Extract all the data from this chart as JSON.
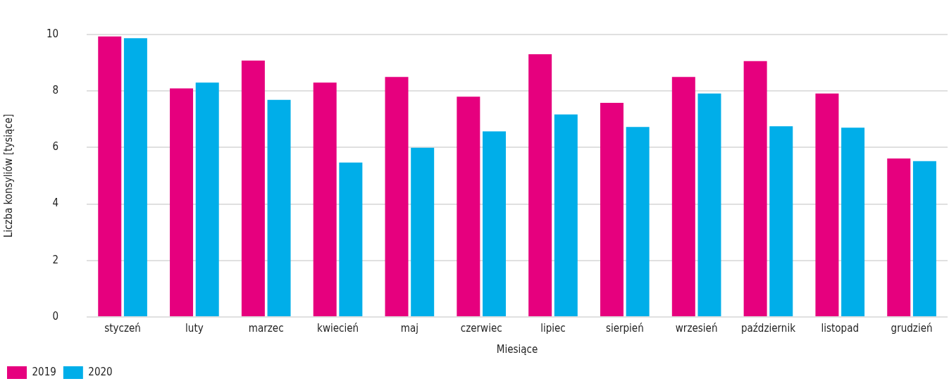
{
  "chart_data": {
    "type": "bar",
    "xlabel": "Miesiące",
    "ylabel": "Liczba konsyliów [tysiące]",
    "categories": [
      "styczeń",
      "luty",
      "marzec",
      "kwiecień",
      "maj",
      "czerwiec",
      "lipiec",
      "sierpień",
      "wrzesień",
      "październik",
      "listopad",
      "grudzień"
    ],
    "series": [
      {
        "name": "2019",
        "color": "#e6007e",
        "values": [
          9.93,
          8.09,
          9.08,
          8.3,
          8.5,
          7.8,
          9.3,
          7.58,
          8.5,
          9.06,
          7.91,
          5.61
        ]
      },
      {
        "name": "2020",
        "color": "#00aee9",
        "values": [
          9.87,
          8.3,
          7.69,
          5.47,
          5.99,
          6.57,
          7.17,
          6.73,
          7.91,
          6.75,
          6.7,
          5.52
        ]
      }
    ],
    "ylim": [
      0,
      10
    ],
    "yticks": [
      0,
      2,
      4,
      6,
      8,
      10
    ],
    "grid": "y",
    "legend": "bottom left"
  }
}
